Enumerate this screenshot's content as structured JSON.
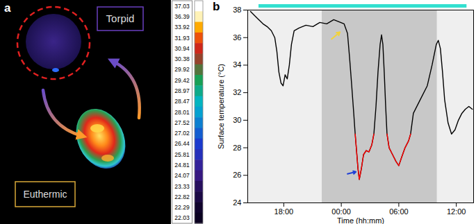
{
  "chart_data": [
    {
      "type": "thermal_image",
      "panel": "a",
      "labels": [
        "Torpid",
        "Euthermic"
      ],
      "colorbar_labels": [
        37.03,
        36.39,
        33.92,
        31.93,
        30.94,
        30.38,
        29.92,
        29.42,
        28.97,
        28.47,
        28.01,
        27.52,
        27.02,
        26.44,
        25.81,
        24.81,
        24.07,
        23.33,
        22.82,
        22.29,
        22.03
      ]
    },
    {
      "type": "line",
      "panel": "b",
      "xlabel": "Time (hh:mm)",
      "ylabel": "Surface temperature (°C)",
      "xlim": [
        14.24,
        37.8
      ],
      "xticks": [
        {
          "value": 18,
          "label": "18:00"
        },
        {
          "value": 24,
          "label": "00:00"
        },
        {
          "value": 30,
          "label": "06:00"
        },
        {
          "value": 36,
          "label": "12:00"
        }
      ],
      "ylim": [
        24,
        38
      ],
      "yticks": [
        24,
        26,
        28,
        30,
        32,
        34,
        36,
        38
      ],
      "x": [
        14.53,
        14.96,
        15.4,
        15.83,
        16.26,
        16.7,
        17.06,
        17.28,
        17.49,
        17.71,
        17.93,
        18.14,
        18.36,
        18.58,
        18.8,
        19.08,
        19.59,
        20.31,
        21.04,
        21.76,
        22.48,
        23.21,
        23.93,
        24.29,
        24.65,
        24.87,
        25.09,
        25.3,
        25.45,
        25.59,
        25.74,
        25.88,
        26.1,
        26.32,
        26.6,
        26.89,
        27.18,
        27.4,
        27.62,
        27.83,
        28.05,
        28.2,
        28.34,
        28.48,
        28.63,
        28.77,
        28.99,
        29.35,
        29.71,
        30.0,
        30.29,
        30.65,
        31.02,
        31.23,
        31.52,
        32.24,
        32.97,
        33.47,
        33.91,
        34.12,
        34.34,
        34.56,
        34.78,
        35.14,
        35.5,
        35.86,
        36.22,
        36.58,
        36.94,
        37.31,
        37.67
      ],
      "series": [
        {
          "color": "#000000",
          "values": [
            37.9,
            37.6,
            37.3,
            37.0,
            36.8,
            36.5,
            36.0,
            35.0,
            33.5,
            32.7,
            32.5,
            33.3,
            33.0,
            34.0,
            35.5,
            36.5,
            36.7,
            36.9,
            36.8,
            37.1,
            37.0,
            37.3,
            37.1,
            37.0,
            36.3,
            34.5,
            32.5,
            30.5,
            29.0,
            27.8,
            26.5,
            25.7,
            26.5,
            27.5,
            27.8,
            27.7,
            28.2,
            29.0,
            31.0,
            33.5,
            35.5,
            36.2,
            35.5,
            33.5,
            31.0,
            29.0,
            28.0,
            27.5,
            27.0,
            26.7,
            27.3,
            28.0,
            28.5,
            29.0,
            30.5,
            31.5,
            32.5,
            34.0,
            35.5,
            35.8,
            35.2,
            33.5,
            31.5,
            29.8,
            29.0,
            29.3,
            30.0,
            30.5,
            30.8,
            31.0,
            30.8
          ]
        },
        {
          "color": "#ff0000",
          "values": [
            null,
            null,
            null,
            null,
            null,
            null,
            null,
            null,
            null,
            null,
            null,
            null,
            null,
            null,
            null,
            null,
            null,
            null,
            null,
            null,
            null,
            null,
            null,
            null,
            null,
            null,
            null,
            null,
            29.0,
            27.8,
            26.5,
            25.7,
            26.5,
            27.5,
            27.8,
            27.7,
            28.2,
            29.0,
            null,
            null,
            null,
            null,
            null,
            null,
            null,
            29.0,
            28.0,
            27.5,
            27.0,
            26.7,
            27.3,
            28.0,
            28.5,
            29.0,
            null,
            null,
            null,
            null,
            null,
            null,
            null,
            null,
            null,
            null,
            null,
            null,
            null,
            null,
            null,
            null,
            null
          ]
        }
      ],
      "bands": [
        {
          "x1": 22,
          "x2": 34,
          "color": "#c8c8c8"
        }
      ],
      "recording_bar": {
        "x1": 15.4,
        "x2": 37.1,
        "color": "#33e0d0"
      },
      "arrows": [
        {
          "x1": 22.99,
          "y1": 35.9,
          "x2": 23.86,
          "y2": 36.4,
          "color": "#f2d33a"
        },
        {
          "x1": 24.65,
          "y1": 26.1,
          "x2": 25.52,
          "y2": 26.25,
          "color": "#1f3fd6"
        }
      ]
    }
  ]
}
